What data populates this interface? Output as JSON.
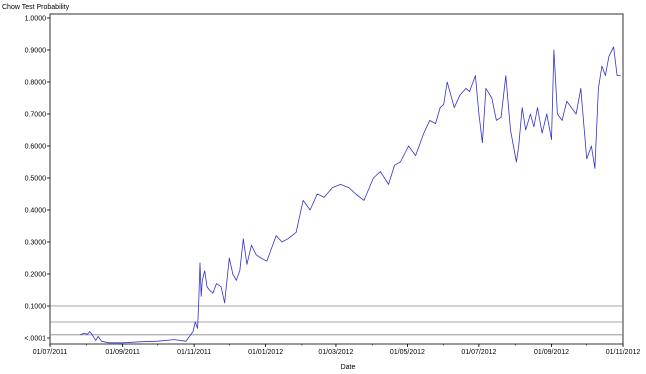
{
  "chart_data": {
    "type": "line",
    "title": "",
    "ylabel": "Chow Test Probability",
    "xlabel": "Date",
    "ylim": [
      -0.0001,
      1.0
    ],
    "xlim": [
      "2011-07-01",
      "2012-11-01"
    ],
    "y_ticks": [
      {
        "value": 0.0,
        "label": "<.0001"
      },
      {
        "value": 0.1,
        "label": "0.1000"
      },
      {
        "value": 0.2,
        "label": "0.2000"
      },
      {
        "value": 0.3,
        "label": "0.3000"
      },
      {
        "value": 0.4,
        "label": "0.4000"
      },
      {
        "value": 0.5,
        "label": "0.5000"
      },
      {
        "value": 0.6,
        "label": "0.6000"
      },
      {
        "value": 0.7,
        "label": "0.7000"
      },
      {
        "value": 0.8,
        "label": "0.8000"
      },
      {
        "value": 0.9,
        "label": "0.9000"
      },
      {
        "value": 1.0,
        "label": "1.0000"
      }
    ],
    "x_ticks": [
      {
        "date": "2011-07-01",
        "label": "01/07/2011"
      },
      {
        "date": "2011-09-01",
        "label": "01/09/2011"
      },
      {
        "date": "2011-11-01",
        "label": "01/11/2011"
      },
      {
        "date": "2012-01-01",
        "label": "01/01/2012"
      },
      {
        "date": "2012-03-01",
        "label": "01/03/2012"
      },
      {
        "date": "2012-05-01",
        "label": "01/05/2012"
      },
      {
        "date": "2012-07-01",
        "label": "01/07/2012"
      },
      {
        "date": "2012-09-01",
        "label": "01/09/2012"
      },
      {
        "date": "2012-11-01",
        "label": "01/11/2012"
      }
    ],
    "reference_lines": [
      0.1,
      0.05,
      0.01
    ],
    "grid": false,
    "series": [
      {
        "color": "#3333cc",
        "x": [
          "2011-07-27",
          "2011-07-30",
          "2011-08-02",
          "2011-08-04",
          "2011-08-06",
          "2011-08-09",
          "2011-08-11",
          "2011-08-14",
          "2011-08-20",
          "2011-09-01",
          "2011-09-15",
          "2011-10-01",
          "2011-10-15",
          "2011-10-25",
          "2011-10-31",
          "2011-11-02",
          "2011-11-04",
          "2011-11-05",
          "2011-11-06",
          "2011-11-07",
          "2011-11-08",
          "2011-11-10",
          "2011-11-12",
          "2011-11-14",
          "2011-11-17",
          "2011-11-20",
          "2011-11-24",
          "2011-11-27",
          "2011-12-01",
          "2011-12-04",
          "2011-12-07",
          "2011-12-10",
          "2011-12-13",
          "2011-12-16",
          "2011-12-20",
          "2011-12-24",
          "2011-12-28",
          "2012-01-02",
          "2012-01-06",
          "2012-01-10",
          "2012-01-15",
          "2012-01-20",
          "2012-01-27",
          "2012-02-02",
          "2012-02-08",
          "2012-02-14",
          "2012-02-20",
          "2012-02-27",
          "2012-03-05",
          "2012-03-12",
          "2012-03-18",
          "2012-03-25",
          "2012-04-02",
          "2012-04-08",
          "2012-04-15",
          "2012-04-20",
          "2012-04-25",
          "2012-05-02",
          "2012-05-08",
          "2012-05-15",
          "2012-05-20",
          "2012-05-25",
          "2012-05-29",
          "2012-06-01",
          "2012-06-04",
          "2012-06-10",
          "2012-06-15",
          "2012-06-20",
          "2012-06-23",
          "2012-06-28",
          "2012-07-01",
          "2012-07-04",
          "2012-07-07",
          "2012-07-12",
          "2012-07-16",
          "2012-07-20",
          "2012-07-24",
          "2012-07-28",
          "2012-08-02",
          "2012-08-04",
          "2012-08-07",
          "2012-08-10",
          "2012-08-14",
          "2012-08-17",
          "2012-08-20",
          "2012-08-24",
          "2012-08-28",
          "2012-09-01",
          "2012-09-03",
          "2012-09-06",
          "2012-09-10",
          "2012-09-14",
          "2012-09-18",
          "2012-09-22",
          "2012-09-26",
          "2012-10-01",
          "2012-10-05",
          "2012-10-08",
          "2012-10-11",
          "2012-10-14",
          "2012-10-17",
          "2012-10-20",
          "2012-10-24",
          "2012-10-27",
          "2012-10-30"
        ],
        "y": [
          0.01,
          0.015,
          0.012,
          0.02,
          0.01,
          -0.008,
          0.005,
          -0.01,
          -0.015,
          -0.015,
          -0.012,
          -0.01,
          -0.005,
          -0.01,
          0.02,
          0.05,
          0.03,
          0.12,
          0.235,
          0.13,
          0.18,
          0.21,
          0.16,
          0.15,
          0.14,
          0.17,
          0.16,
          0.11,
          0.25,
          0.2,
          0.18,
          0.21,
          0.31,
          0.23,
          0.29,
          0.26,
          0.25,
          0.24,
          0.28,
          0.32,
          0.3,
          0.31,
          0.33,
          0.43,
          0.4,
          0.45,
          0.44,
          0.47,
          0.48,
          0.47,
          0.45,
          0.43,
          0.5,
          0.52,
          0.48,
          0.54,
          0.55,
          0.6,
          0.57,
          0.64,
          0.68,
          0.67,
          0.72,
          0.73,
          0.8,
          0.72,
          0.76,
          0.78,
          0.77,
          0.82,
          0.7,
          0.61,
          0.78,
          0.75,
          0.68,
          0.69,
          0.82,
          0.65,
          0.55,
          0.6,
          0.72,
          0.65,
          0.7,
          0.66,
          0.72,
          0.64,
          0.7,
          0.62,
          0.9,
          0.7,
          0.68,
          0.74,
          0.72,
          0.7,
          0.78,
          0.56,
          0.6,
          0.53,
          0.78,
          0.85,
          0.82,
          0.88,
          0.91,
          0.82,
          0.82
        ]
      }
    ]
  }
}
